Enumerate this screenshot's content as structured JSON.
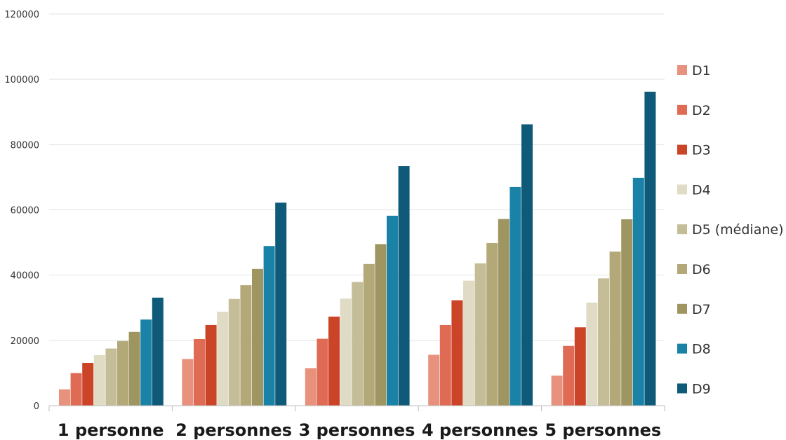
{
  "chart_data": {
    "type": "bar",
    "title": "",
    "xlabel": "",
    "ylabel": "",
    "ylim": [
      0,
      120000
    ],
    "yticks": [
      "0",
      "20000",
      "40000",
      "60000",
      "80000",
      "100000",
      "120000"
    ],
    "grid": true,
    "legend_position": "right",
    "categories": [
      "1 personne",
      "2 personnes",
      "3 personnes",
      "4 personnes",
      "5 personnes"
    ],
    "series": [
      {
        "name": "D1",
        "color": "#e8917c",
        "values": [
          5000,
          14300,
          11500,
          15600,
          9200
        ]
      },
      {
        "name": "D2",
        "color": "#e06b55",
        "values": [
          10000,
          20400,
          20500,
          24700,
          18300
        ]
      },
      {
        "name": "D3",
        "color": "#cc4428",
        "values": [
          13100,
          24700,
          27300,
          32300,
          24000
        ]
      },
      {
        "name": "D4",
        "color": "#e0dbc5",
        "values": [
          15500,
          28800,
          32800,
          38300,
          31600
        ]
      },
      {
        "name": "D5 (médiane)",
        "color": "#c5bd98",
        "values": [
          17500,
          32700,
          37900,
          43600,
          39000
        ]
      },
      {
        "name": "D6",
        "color": "#b3a878",
        "values": [
          19800,
          36900,
          43400,
          49800,
          47200
        ]
      },
      {
        "name": "D7",
        "color": "#9e9560",
        "values": [
          22600,
          41900,
          49500,
          57200,
          57100
        ]
      },
      {
        "name": "D8",
        "color": "#1a82a6",
        "values": [
          26400,
          48900,
          58200,
          67000,
          69800
        ]
      },
      {
        "name": "D9",
        "color": "#0e5a78",
        "values": [
          33100,
          62200,
          73400,
          86200,
          96200
        ]
      }
    ]
  }
}
